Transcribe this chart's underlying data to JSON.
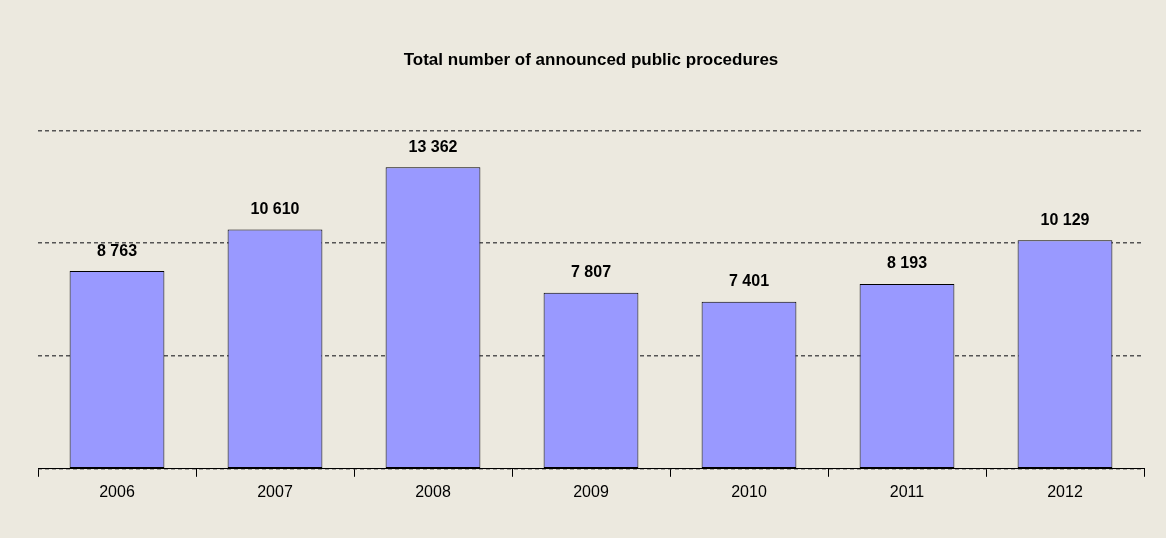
{
  "chart_data": {
    "type": "bar",
    "title": "Total number of announced public procedures",
    "categories": [
      "2006",
      "2007",
      "2008",
      "2009",
      "2010",
      "2011",
      "2012"
    ],
    "values": [
      8763,
      10610,
      13362,
      7807,
      7401,
      8193,
      10129
    ],
    "value_labels": [
      "8 763",
      "10 610",
      "13 362",
      "7 807",
      "7 401",
      "8 193",
      "10 129"
    ],
    "color": "#9999ff",
    "ylim": [
      0,
      15000
    ],
    "yticks": [
      {
        "value": 0,
        "label": null
      },
      {
        "value": 5000,
        "label": null
      },
      {
        "value": 10000,
        "label": null
      },
      {
        "value": 15000,
        "label": null
      }
    ],
    "tick_labels": "x",
    "grid": "y",
    "legend": false
  }
}
